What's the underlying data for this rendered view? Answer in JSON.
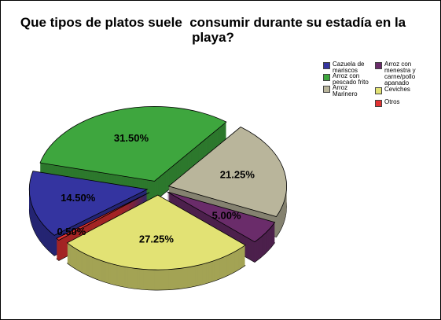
{
  "chart_data": {
    "type": "pie",
    "title": "Que tipos de platos suele  consumir durante su estadía en la playa?",
    "categories": [
      "Cazuela de mariscos",
      "Arroz con pescado frito",
      "Arroz Marinero",
      "Arroz con menestra y carne/pollo apanado",
      "Ceviches",
      "Otros"
    ],
    "values": [
      14.5,
      31.5,
      21.25,
      5.0,
      27.25,
      0.5
    ],
    "value_labels": [
      "14.50%",
      "31.50%",
      "21.25%",
      "5.00%",
      "27.25%",
      "0.50%"
    ],
    "colors": [
      "#3434a0",
      "#3ea63e",
      "#b9b59b",
      "#6a2c6a",
      "#e2e274",
      "#e23232"
    ],
    "legend": "top-right"
  }
}
